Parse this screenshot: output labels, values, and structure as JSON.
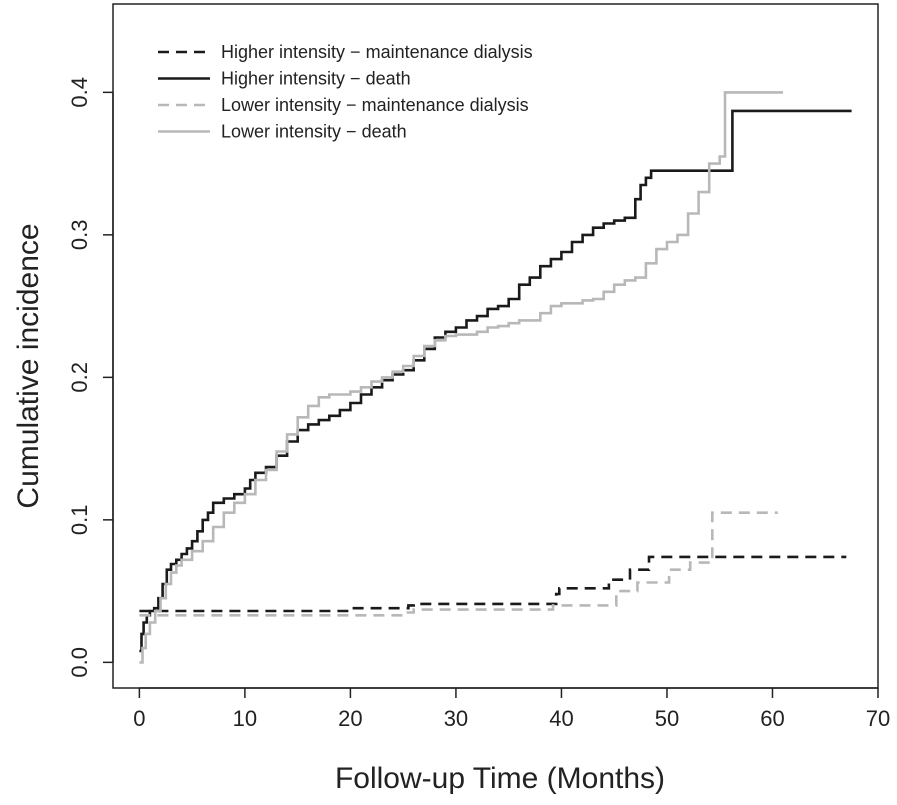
{
  "chart_data": {
    "type": "line",
    "step": true,
    "title": "",
    "xlabel": "Follow-up Time (Months)",
    "ylabel": "Cumulative incidence",
    "xlim": [
      -2.5,
      70
    ],
    "ylim": [
      -0.018,
      0.462
    ],
    "xticks": [
      0,
      10,
      20,
      30,
      40,
      50,
      60,
      70
    ],
    "xtick_labels": [
      "0",
      "10",
      "20",
      "30",
      "40",
      "50",
      "60",
      "70"
    ],
    "yticks": [
      0.0,
      0.1,
      0.2,
      0.3,
      0.4
    ],
    "ytick_labels": [
      "0.0",
      "0.1",
      "0.2",
      "0.3",
      "0.4"
    ],
    "grid": false,
    "legend_position": "top-left",
    "series": [
      {
        "name": "Higher intensity − maintenance dialysis",
        "color": "#1a1a1a",
        "dash": "dashed",
        "points": [
          [
            0,
            0.036
          ],
          [
            2,
            0.036
          ],
          [
            20,
            0.036
          ],
          [
            20.2,
            0.038
          ],
          [
            25,
            0.038
          ],
          [
            25.5,
            0.04
          ],
          [
            26,
            0.041
          ],
          [
            39,
            0.041
          ],
          [
            39.5,
            0.048
          ],
          [
            39.8,
            0.052
          ],
          [
            44,
            0.052
          ],
          [
            44.5,
            0.058
          ],
          [
            46,
            0.058
          ],
          [
            46.5,
            0.065
          ],
          [
            48,
            0.065
          ],
          [
            48.3,
            0.074
          ],
          [
            67,
            0.074
          ]
        ]
      },
      {
        "name": "Higher intensity − death",
        "color": "#1a1a1a",
        "dash": "solid",
        "points": [
          [
            0,
            0.008
          ],
          [
            0.2,
            0.02
          ],
          [
            0.4,
            0.028
          ],
          [
            0.7,
            0.033
          ],
          [
            1,
            0.036
          ],
          [
            1.4,
            0.038
          ],
          [
            1.8,
            0.045
          ],
          [
            2.2,
            0.055
          ],
          [
            2.6,
            0.065
          ],
          [
            3,
            0.069
          ],
          [
            3.5,
            0.072
          ],
          [
            4,
            0.076
          ],
          [
            4.5,
            0.08
          ],
          [
            5,
            0.085
          ],
          [
            5.5,
            0.092
          ],
          [
            6,
            0.1
          ],
          [
            6.5,
            0.105
          ],
          [
            7,
            0.112
          ],
          [
            8,
            0.115
          ],
          [
            9,
            0.118
          ],
          [
            10,
            0.122
          ],
          [
            10.5,
            0.128
          ],
          [
            11,
            0.133
          ],
          [
            12,
            0.137
          ],
          [
            13,
            0.145
          ],
          [
            14,
            0.155
          ],
          [
            15,
            0.163
          ],
          [
            16,
            0.167
          ],
          [
            17,
            0.17
          ],
          [
            18,
            0.173
          ],
          [
            19,
            0.177
          ],
          [
            20,
            0.182
          ],
          [
            21,
            0.188
          ],
          [
            22,
            0.193
          ],
          [
            23,
            0.198
          ],
          [
            24,
            0.202
          ],
          [
            25,
            0.205
          ],
          [
            26,
            0.212
          ],
          [
            27,
            0.22
          ],
          [
            28,
            0.228
          ],
          [
            29,
            0.232
          ],
          [
            30,
            0.235
          ],
          [
            31,
            0.24
          ],
          [
            32,
            0.243
          ],
          [
            33,
            0.248
          ],
          [
            34,
            0.25
          ],
          [
            35,
            0.255
          ],
          [
            36,
            0.265
          ],
          [
            37,
            0.27
          ],
          [
            38,
            0.278
          ],
          [
            39,
            0.283
          ],
          [
            40,
            0.288
          ],
          [
            41,
            0.295
          ],
          [
            42,
            0.3
          ],
          [
            43,
            0.305
          ],
          [
            44,
            0.308
          ],
          [
            45,
            0.31
          ],
          [
            46,
            0.312
          ],
          [
            47,
            0.325
          ],
          [
            47.5,
            0.335
          ],
          [
            48,
            0.34
          ],
          [
            48.5,
            0.345
          ],
          [
            56,
            0.345
          ],
          [
            56.2,
            0.387
          ],
          [
            67.5,
            0.387
          ]
        ]
      },
      {
        "name": "Lower intensity − maintenance dialysis",
        "color": "#b8b8b8",
        "dash": "dashed",
        "points": [
          [
            0,
            0.033
          ],
          [
            1,
            0.033
          ],
          [
            20,
            0.033
          ],
          [
            25,
            0.035
          ],
          [
            26,
            0.037
          ],
          [
            39,
            0.037
          ],
          [
            39.2,
            0.04
          ],
          [
            45,
            0.04
          ],
          [
            45.2,
            0.05
          ],
          [
            47,
            0.05
          ],
          [
            47.2,
            0.056
          ],
          [
            50,
            0.056
          ],
          [
            50.2,
            0.065
          ],
          [
            52,
            0.065
          ],
          [
            52.2,
            0.07
          ],
          [
            54,
            0.07
          ],
          [
            54.3,
            0.105
          ],
          [
            60.5,
            0.105
          ]
        ]
      },
      {
        "name": "Lower intensity − death",
        "color": "#b8b8b8",
        "dash": "solid",
        "points": [
          [
            0,
            0.0
          ],
          [
            0.3,
            0.01
          ],
          [
            0.6,
            0.02
          ],
          [
            1,
            0.028
          ],
          [
            1.5,
            0.036
          ],
          [
            2,
            0.045
          ],
          [
            2.5,
            0.055
          ],
          [
            3,
            0.063
          ],
          [
            3.5,
            0.068
          ],
          [
            4,
            0.072
          ],
          [
            5,
            0.078
          ],
          [
            6,
            0.085
          ],
          [
            7,
            0.095
          ],
          [
            8,
            0.105
          ],
          [
            9,
            0.112
          ],
          [
            10,
            0.118
          ],
          [
            11,
            0.128
          ],
          [
            12,
            0.135
          ],
          [
            13,
            0.148
          ],
          [
            14,
            0.16
          ],
          [
            15,
            0.172
          ],
          [
            16,
            0.18
          ],
          [
            17,
            0.186
          ],
          [
            18,
            0.188
          ],
          [
            19,
            0.188
          ],
          [
            20,
            0.19
          ],
          [
            21,
            0.193
          ],
          [
            22,
            0.197
          ],
          [
            23,
            0.2
          ],
          [
            24,
            0.204
          ],
          [
            25,
            0.208
          ],
          [
            26,
            0.215
          ],
          [
            27,
            0.222
          ],
          [
            28,
            0.226
          ],
          [
            29,
            0.229
          ],
          [
            30,
            0.23
          ],
          [
            31,
            0.23
          ],
          [
            32,
            0.232
          ],
          [
            33,
            0.235
          ],
          [
            34,
            0.236
          ],
          [
            35,
            0.238
          ],
          [
            36,
            0.24
          ],
          [
            37,
            0.24
          ],
          [
            38,
            0.245
          ],
          [
            39,
            0.25
          ],
          [
            40,
            0.252
          ],
          [
            41,
            0.252
          ],
          [
            42,
            0.254
          ],
          [
            43,
            0.255
          ],
          [
            44,
            0.26
          ],
          [
            45,
            0.265
          ],
          [
            46,
            0.268
          ],
          [
            47,
            0.27
          ],
          [
            48,
            0.28
          ],
          [
            49,
            0.29
          ],
          [
            50,
            0.295
          ],
          [
            51,
            0.3
          ],
          [
            52,
            0.315
          ],
          [
            53,
            0.33
          ],
          [
            54,
            0.35
          ],
          [
            55,
            0.355
          ],
          [
            55.5,
            0.4
          ],
          [
            61,
            0.4
          ]
        ]
      }
    ]
  }
}
